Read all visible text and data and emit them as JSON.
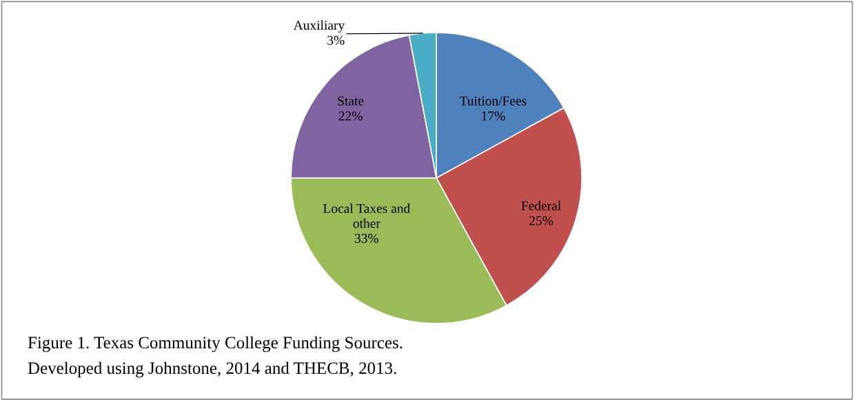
{
  "chart_data": {
    "type": "pie",
    "categories": [
      "Tuition/Fees",
      "Federal",
      "Local Taxes and\nother",
      "State",
      "Auxiliary"
    ],
    "values": [
      17,
      25,
      33,
      22,
      3
    ],
    "value_labels": [
      "17%",
      "25%",
      "33%",
      "22%",
      "3%"
    ],
    "colors": [
      "#4f81bd",
      "#c0504d",
      "#9bbb59",
      "#8064a2",
      "#4bacc6"
    ],
    "legend": false,
    "annotations": [
      "Figure 1. Texas Community College Funding Sources.",
      "Developed using Johnstone, 2014 and THECB, 2013."
    ]
  }
}
